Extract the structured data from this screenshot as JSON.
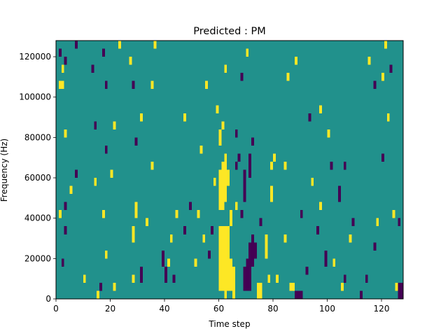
{
  "chart_data": {
    "type": "heatmap",
    "title": "Predicted : PM",
    "xlabel": "Time step",
    "ylabel": "Frequency (Hz)",
    "xlim": [
      0,
      128
    ],
    "ylim": [
      0,
      128000
    ],
    "xticks": [
      0,
      20,
      40,
      60,
      80,
      100,
      120
    ],
    "yticks": [
      0,
      20000,
      40000,
      60000,
      80000,
      100000,
      120000
    ],
    "xtick_labels": [
      "0",
      "20",
      "40",
      "60",
      "80",
      "100",
      "120"
    ],
    "ytick_labels": [
      "0",
      "20000",
      "40000",
      "60000",
      "80000",
      "100000",
      "120000"
    ],
    "grid": false,
    "colormap": "viridis",
    "value_levels": {
      "low": 0,
      "mid": 0.5,
      "high": 1
    },
    "colors": {
      "low": "#440154",
      "mid": "#21918c",
      "high": "#fde725"
    },
    "background_level": "mid",
    "bins": {
      "time_bin_width": 1,
      "frequency_bin_height": 4000,
      "time_bins": 128,
      "frequency_bins": 32
    },
    "cells": [
      {
        "t": 60,
        "f0": 4000,
        "f1": 36000,
        "level": "high"
      },
      {
        "t": 61,
        "f0": 4000,
        "f1": 36000,
        "level": "high"
      },
      {
        "t": 62,
        "f0": 0,
        "f1": 36000,
        "level": "high"
      },
      {
        "t": 63,
        "f0": 4000,
        "f1": 36000,
        "level": "high"
      },
      {
        "t": 60,
        "f0": 44000,
        "f1": 64000,
        "level": "high"
      },
      {
        "t": 61,
        "f0": 44000,
        "f1": 68000,
        "level": "high"
      },
      {
        "t": 62,
        "f0": 48000,
        "f1": 72000,
        "level": "high"
      },
      {
        "t": 64,
        "f0": 4000,
        "f1": 20000,
        "level": "high"
      },
      {
        "t": 65,
        "f0": 0,
        "f1": 16000,
        "level": "high"
      },
      {
        "t": 64,
        "f0": 36000,
        "f1": 44000,
        "level": "high"
      },
      {
        "t": 63,
        "f0": 56000,
        "f1": 64000,
        "level": "high"
      },
      {
        "t": 60,
        "f0": 76000,
        "f1": 84000,
        "level": "high"
      },
      {
        "t": 61,
        "f0": 84000,
        "f1": 88000,
        "level": "high"
      },
      {
        "t": 69,
        "f0": 4000,
        "f1": 16000,
        "level": "low"
      },
      {
        "t": 70,
        "f0": 4000,
        "f1": 20000,
        "level": "low"
      },
      {
        "t": 71,
        "f0": 4000,
        "f1": 28000,
        "level": "low"
      },
      {
        "t": 72,
        "f0": 16000,
        "f1": 32000,
        "level": "low"
      },
      {
        "t": 73,
        "f0": 20000,
        "f1": 28000,
        "level": "low"
      },
      {
        "t": 68,
        "f0": 40000,
        "f1": 44000,
        "level": "low"
      },
      {
        "t": 66,
        "f0": 64000,
        "f1": 68000,
        "level": "low"
      },
      {
        "t": 67,
        "f0": 68000,
        "f1": 72000,
        "level": "low"
      },
      {
        "t": 69,
        "f0": 48000,
        "f1": 64000,
        "level": "low"
      },
      {
        "t": 71,
        "f0": 60000,
        "f1": 72000,
        "level": "low"
      },
      {
        "t": 72,
        "f0": 76000,
        "f1": 80000,
        "level": "low"
      },
      {
        "t": 74,
        "f0": 0,
        "f1": 8000,
        "level": "high"
      },
      {
        "t": 75,
        "f0": 0,
        "f1": 8000,
        "level": "high"
      },
      {
        "t": 77,
        "f0": 20000,
        "f1": 32000,
        "level": "high"
      },
      {
        "t": 79,
        "f0": 64000,
        "f1": 68000,
        "level": "high"
      },
      {
        "t": 80,
        "f0": 68000,
        "f1": 72000,
        "level": "high"
      },
      {
        "t": 88,
        "f0": 0,
        "f1": 4000,
        "level": "low"
      },
      {
        "t": 89,
        "f0": 0,
        "f1": 4000,
        "level": "low"
      },
      {
        "t": 90,
        "f0": 0,
        "f1": 4000,
        "level": "low"
      },
      {
        "t": 86,
        "f0": 4000,
        "f1": 8000,
        "level": "high"
      },
      {
        "t": 87,
        "f0": 4000,
        "f1": 8000,
        "level": "high"
      },
      {
        "t": 126,
        "f0": 0,
        "f1": 8000,
        "level": "low"
      },
      {
        "t": 127,
        "f0": 0,
        "f1": 8000,
        "level": "low"
      },
      {
        "t": 125,
        "f0": 4000,
        "f1": 8000,
        "level": "high"
      },
      {
        "t": 2,
        "f0": 16000,
        "f1": 20000,
        "level": "low"
      },
      {
        "t": 3,
        "f0": 32000,
        "f1": 36000,
        "level": "low"
      },
      {
        "t": 1,
        "f0": 40000,
        "f1": 44000,
        "level": "high"
      },
      {
        "t": 3,
        "f0": 44000,
        "f1": 48000,
        "level": "low"
      },
      {
        "t": 5,
        "f0": 52000,
        "f1": 56000,
        "level": "high"
      },
      {
        "t": 7,
        "f0": 60000,
        "f1": 64000,
        "level": "low"
      },
      {
        "t": 3,
        "f0": 80000,
        "f1": 84000,
        "level": "high"
      },
      {
        "t": 2,
        "f0": 104000,
        "f1": 108000,
        "level": "high"
      },
      {
        "t": 1,
        "f0": 104000,
        "f1": 108000,
        "level": "high"
      },
      {
        "t": 2,
        "f0": 112000,
        "f1": 116000,
        "level": "high"
      },
      {
        "t": 3,
        "f0": 116000,
        "f1": 120000,
        "level": "low"
      },
      {
        "t": 1,
        "f0": 120000,
        "f1": 124000,
        "level": "low"
      },
      {
        "t": 7,
        "f0": 124000,
        "f1": 128000,
        "level": "low"
      },
      {
        "t": 10,
        "f0": 8000,
        "f1": 12000,
        "level": "high"
      },
      {
        "t": 15,
        "f0": 0,
        "f1": 4000,
        "level": "high"
      },
      {
        "t": 16,
        "f0": 4000,
        "f1": 8000,
        "level": "low"
      },
      {
        "t": 18,
        "f0": 20000,
        "f1": 24000,
        "level": "high"
      },
      {
        "t": 17,
        "f0": 40000,
        "f1": 44000,
        "level": "high"
      },
      {
        "t": 14,
        "f0": 56000,
        "f1": 60000,
        "level": "high"
      },
      {
        "t": 20,
        "f0": 60000,
        "f1": 64000,
        "level": "high"
      },
      {
        "t": 18,
        "f0": 72000,
        "f1": 76000,
        "level": "low"
      },
      {
        "t": 14,
        "f0": 84000,
        "f1": 88000,
        "level": "low"
      },
      {
        "t": 21,
        "f0": 84000,
        "f1": 88000,
        "level": "high"
      },
      {
        "t": 18,
        "f0": 104000,
        "f1": 108000,
        "level": "low"
      },
      {
        "t": 13,
        "f0": 112000,
        "f1": 116000,
        "level": "low"
      },
      {
        "t": 17,
        "f0": 120000,
        "f1": 124000,
        "level": "low"
      },
      {
        "t": 23,
        "f0": 124000,
        "f1": 128000,
        "level": "high"
      },
      {
        "t": 21,
        "f0": 4000,
        "f1": 8000,
        "level": "high"
      },
      {
        "t": 28,
        "f0": 8000,
        "f1": 12000,
        "level": "high"
      },
      {
        "t": 31,
        "f0": 8000,
        "f1": 16000,
        "level": "low"
      },
      {
        "t": 28,
        "f0": 28000,
        "f1": 36000,
        "level": "high"
      },
      {
        "t": 29,
        "f0": 40000,
        "f1": 48000,
        "level": "high"
      },
      {
        "t": 33,
        "f0": 36000,
        "f1": 40000,
        "level": "high"
      },
      {
        "t": 35,
        "f0": 64000,
        "f1": 68000,
        "level": "high"
      },
      {
        "t": 29,
        "f0": 76000,
        "f1": 80000,
        "level": "low"
      },
      {
        "t": 31,
        "f0": 88000,
        "f1": 92000,
        "level": "high"
      },
      {
        "t": 28,
        "f0": 104000,
        "f1": 108000,
        "level": "low"
      },
      {
        "t": 27,
        "f0": 116000,
        "f1": 120000,
        "level": "high"
      },
      {
        "t": 35,
        "f0": 104000,
        "f1": 108000,
        "level": "high"
      },
      {
        "t": 36,
        "f0": 124000,
        "f1": 128000,
        "level": "high"
      },
      {
        "t": 39,
        "f0": 16000,
        "f1": 24000,
        "level": "low"
      },
      {
        "t": 40,
        "f0": 8000,
        "f1": 16000,
        "level": "low"
      },
      {
        "t": 41,
        "f0": 16000,
        "f1": 20000,
        "level": "high"
      },
      {
        "t": 42,
        "f0": 28000,
        "f1": 32000,
        "level": "high"
      },
      {
        "t": 43,
        "f0": 8000,
        "f1": 12000,
        "level": "low"
      },
      {
        "t": 44,
        "f0": 40000,
        "f1": 44000,
        "level": "high"
      },
      {
        "t": 47,
        "f0": 32000,
        "f1": 36000,
        "level": "low"
      },
      {
        "t": 47,
        "f0": 88000,
        "f1": 92000,
        "level": "high"
      },
      {
        "t": 49,
        "f0": 44000,
        "f1": 48000,
        "level": "low"
      },
      {
        "t": 51,
        "f0": 16000,
        "f1": 20000,
        "level": "high"
      },
      {
        "t": 52,
        "f0": 40000,
        "f1": 44000,
        "level": "high"
      },
      {
        "t": 54,
        "f0": 28000,
        "f1": 32000,
        "level": "high"
      },
      {
        "t": 56,
        "f0": 20000,
        "f1": 24000,
        "level": "low"
      },
      {
        "t": 57,
        "f0": 32000,
        "f1": 36000,
        "level": "low"
      },
      {
        "t": 58,
        "f0": 56000,
        "f1": 60000,
        "level": "high"
      },
      {
        "t": 53,
        "f0": 72000,
        "f1": 76000,
        "level": "high"
      },
      {
        "t": 55,
        "f0": 104000,
        "f1": 108000,
        "level": "high"
      },
      {
        "t": 59,
        "f0": 92000,
        "f1": 96000,
        "level": "high"
      },
      {
        "t": 62,
        "f0": 112000,
        "f1": 116000,
        "level": "high"
      },
      {
        "t": 66,
        "f0": 44000,
        "f1": 48000,
        "level": "high"
      },
      {
        "t": 66,
        "f0": 80000,
        "f1": 84000,
        "level": "low"
      },
      {
        "t": 68,
        "f0": 108000,
        "f1": 112000,
        "level": "low"
      },
      {
        "t": 70,
        "f0": 120000,
        "f1": 124000,
        "level": "high"
      },
      {
        "t": 75,
        "f0": 36000,
        "f1": 40000,
        "level": "low"
      },
      {
        "t": 78,
        "f0": 8000,
        "f1": 12000,
        "level": "high"
      },
      {
        "t": 81,
        "f0": 8000,
        "f1": 12000,
        "level": "high"
      },
      {
        "t": 79,
        "f0": 48000,
        "f1": 56000,
        "level": "high"
      },
      {
        "t": 84,
        "f0": 28000,
        "f1": 32000,
        "level": "high"
      },
      {
        "t": 84,
        "f0": 64000,
        "f1": 68000,
        "level": "high"
      },
      {
        "t": 85,
        "f0": 108000,
        "f1": 112000,
        "level": "high"
      },
      {
        "t": 88,
        "f0": 116000,
        "f1": 120000,
        "level": "high"
      },
      {
        "t": 90,
        "f0": 40000,
        "f1": 44000,
        "level": "low"
      },
      {
        "t": 92,
        "f0": 12000,
        "f1": 16000,
        "level": "low"
      },
      {
        "t": 94,
        "f0": 56000,
        "f1": 60000,
        "level": "high"
      },
      {
        "t": 97,
        "f0": 44000,
        "f1": 48000,
        "level": "high"
      },
      {
        "t": 99,
        "f0": 16000,
        "f1": 24000,
        "level": "low"
      },
      {
        "t": 100,
        "f0": 80000,
        "f1": 84000,
        "level": "high"
      },
      {
        "t": 101,
        "f0": 64000,
        "f1": 68000,
        "level": "low"
      },
      {
        "t": 104,
        "f0": 48000,
        "f1": 56000,
        "level": "low"
      },
      {
        "t": 105,
        "f0": 4000,
        "f1": 8000,
        "level": "high"
      },
      {
        "t": 106,
        "f0": 64000,
        "f1": 68000,
        "level": "low"
      },
      {
        "t": 109,
        "f0": 36000,
        "f1": 40000,
        "level": "low"
      },
      {
        "t": 112,
        "f0": 0,
        "f1": 4000,
        "level": "low"
      },
      {
        "t": 114,
        "f0": 8000,
        "f1": 12000,
        "level": "low"
      },
      {
        "t": 117,
        "f0": 24000,
        "f1": 28000,
        "level": "low"
      },
      {
        "t": 118,
        "f0": 36000,
        "f1": 40000,
        "level": "high"
      },
      {
        "t": 120,
        "f0": 68000,
        "f1": 72000,
        "level": "low"
      },
      {
        "t": 122,
        "f0": 88000,
        "f1": 92000,
        "level": "high"
      },
      {
        "t": 124,
        "f0": 40000,
        "f1": 44000,
        "level": "high"
      },
      {
        "t": 126,
        "f0": 36000,
        "f1": 40000,
        "level": "low"
      },
      {
        "t": 117,
        "f0": 104000,
        "f1": 108000,
        "level": "low"
      },
      {
        "t": 120,
        "f0": 108000,
        "f1": 112000,
        "level": "high"
      },
      {
        "t": 115,
        "f0": 116000,
        "f1": 120000,
        "level": "high"
      },
      {
        "t": 121,
        "f0": 124000,
        "f1": 128000,
        "level": "high"
      },
      {
        "t": 123,
        "f0": 112000,
        "f1": 116000,
        "level": "low"
      },
      {
        "t": 108,
        "f0": 28000,
        "f1": 32000,
        "level": "high"
      },
      {
        "t": 96,
        "f0": 32000,
        "f1": 36000,
        "level": "low"
      },
      {
        "t": 93,
        "f0": 88000,
        "f1": 92000,
        "level": "low"
      },
      {
        "t": 97,
        "f0": 92000,
        "f1": 96000,
        "level": "high"
      },
      {
        "t": 106,
        "f0": 8000,
        "f1": 12000,
        "level": "low"
      },
      {
        "t": 102,
        "f0": 16000,
        "f1": 20000,
        "level": "high"
      }
    ]
  }
}
